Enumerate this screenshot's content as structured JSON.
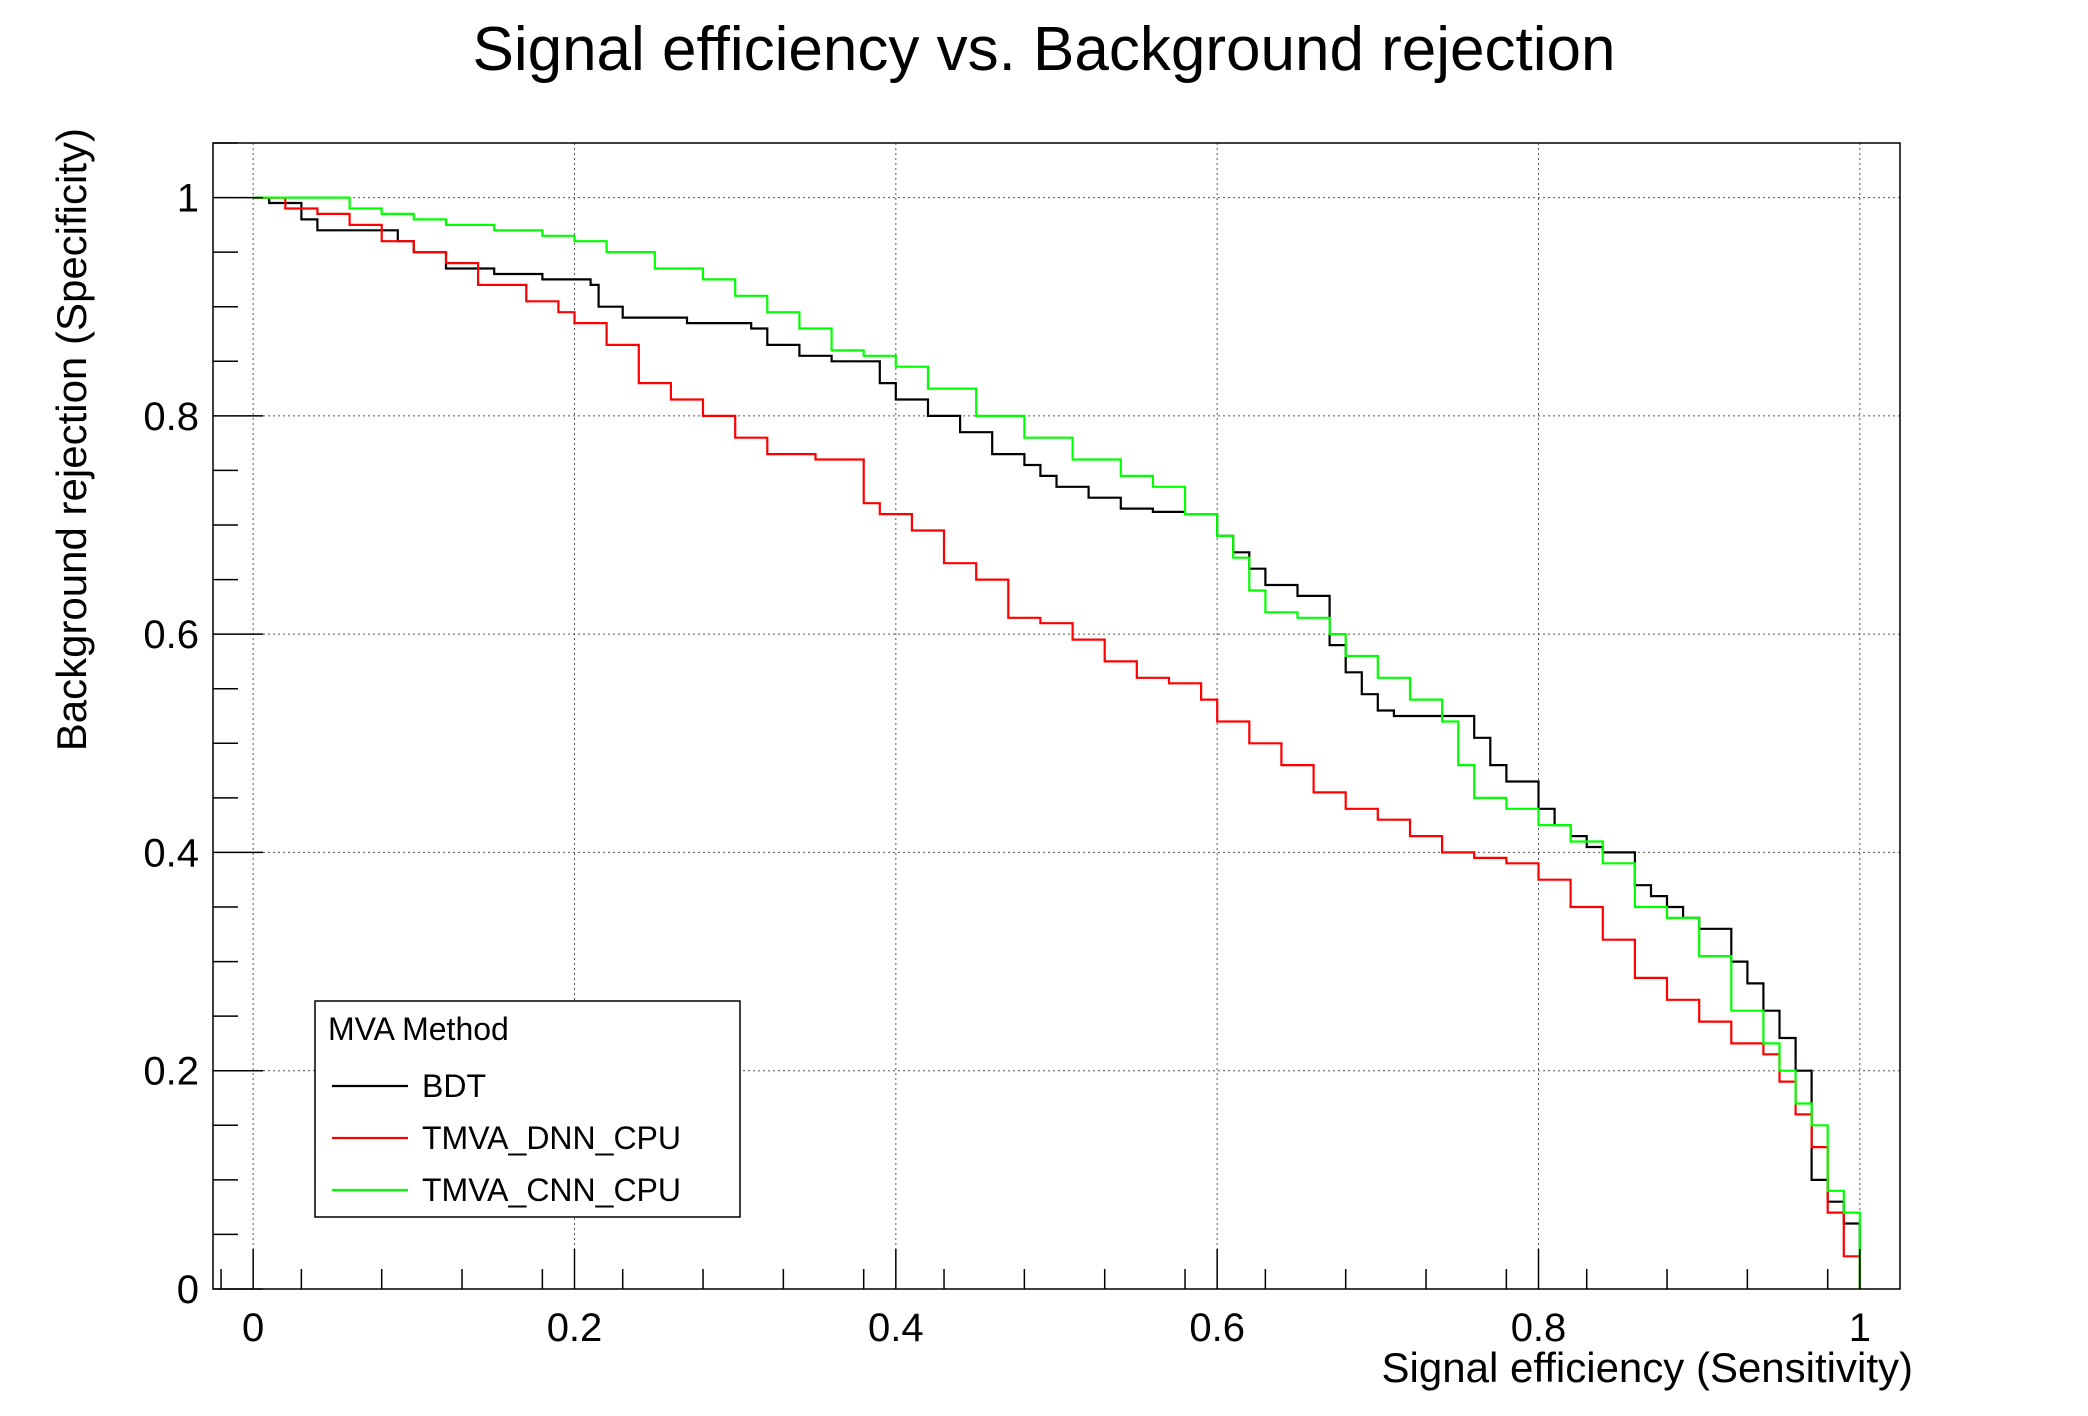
{
  "chart_data": {
    "type": "line",
    "title": "Signal efficiency vs. Background rejection",
    "xlabel": "Signal efficiency (Sensitivity)",
    "ylabel": "Background rejection (Specificity)",
    "xlim": [
      -0.025,
      1.025
    ],
    "ylim": [
      0,
      1.05
    ],
    "grid": true,
    "x_ticks": [
      {
        "value": 0,
        "label": "0"
      },
      {
        "value": 0.2,
        "label": "0.2"
      },
      {
        "value": 0.4,
        "label": "0.4"
      },
      {
        "value": 0.6,
        "label": "0.6"
      },
      {
        "value": 0.8,
        "label": "0.8"
      },
      {
        "value": 1,
        "label": "1"
      }
    ],
    "y_ticks": [
      {
        "value": 0,
        "label": "0"
      },
      {
        "value": 0.2,
        "label": "0.2"
      },
      {
        "value": 0.4,
        "label": "0.4"
      },
      {
        "value": 0.6,
        "label": "0.6"
      },
      {
        "value": 0.8,
        "label": "0.8"
      },
      {
        "value": 1,
        "label": "1"
      }
    ],
    "legend": {
      "title": "MVA Method",
      "placement": "bottom-left"
    },
    "series": [
      {
        "name": "BDT",
        "color": "#000000",
        "x": [
          0,
          0.01,
          0.03,
          0.04,
          0.05,
          0.07,
          0.09,
          0.1,
          0.12,
          0.15,
          0.18,
          0.21,
          0.215,
          0.23,
          0.27,
          0.31,
          0.32,
          0.34,
          0.36,
          0.38,
          0.39,
          0.4,
          0.42,
          0.44,
          0.46,
          0.48,
          0.49,
          0.5,
          0.52,
          0.54,
          0.56,
          0.58,
          0.6,
          0.61,
          0.62,
          0.63,
          0.65,
          0.67,
          0.68,
          0.69,
          0.7,
          0.71,
          0.72,
          0.76,
          0.77,
          0.78,
          0.8,
          0.81,
          0.82,
          0.83,
          0.84,
          0.86,
          0.87,
          0.88,
          0.89,
          0.9,
          0.92,
          0.93,
          0.94,
          0.95,
          0.96,
          0.97,
          0.98,
          0.99,
          1.0
        ],
        "y": [
          1.0,
          0.995,
          0.98,
          0.97,
          0.97,
          0.97,
          0.96,
          0.95,
          0.935,
          0.93,
          0.925,
          0.92,
          0.9,
          0.89,
          0.885,
          0.88,
          0.865,
          0.855,
          0.85,
          0.85,
          0.83,
          0.815,
          0.8,
          0.785,
          0.765,
          0.755,
          0.745,
          0.735,
          0.725,
          0.715,
          0.712,
          0.71,
          0.69,
          0.675,
          0.66,
          0.645,
          0.635,
          0.59,
          0.565,
          0.545,
          0.53,
          0.525,
          0.525,
          0.505,
          0.48,
          0.465,
          0.44,
          0.425,
          0.415,
          0.405,
          0.4,
          0.37,
          0.36,
          0.35,
          0.34,
          0.33,
          0.3,
          0.28,
          0.255,
          0.23,
          0.2,
          0.1,
          0.08,
          0.06,
          0.0
        ]
      },
      {
        "name": "TMVA_DNN_CPU",
        "color": "#ff0000",
        "x": [
          0,
          0.02,
          0.04,
          0.06,
          0.08,
          0.1,
          0.12,
          0.14,
          0.17,
          0.19,
          0.2,
          0.22,
          0.24,
          0.26,
          0.28,
          0.3,
          0.32,
          0.35,
          0.38,
          0.39,
          0.41,
          0.43,
          0.45,
          0.47,
          0.49,
          0.51,
          0.53,
          0.55,
          0.57,
          0.59,
          0.6,
          0.62,
          0.64,
          0.66,
          0.68,
          0.7,
          0.72,
          0.74,
          0.76,
          0.78,
          0.8,
          0.82,
          0.84,
          0.86,
          0.88,
          0.9,
          0.92,
          0.94,
          0.95,
          0.96,
          0.97,
          0.98,
          0.99,
          1.0
        ],
        "y": [
          1.0,
          0.99,
          0.985,
          0.975,
          0.96,
          0.95,
          0.94,
          0.92,
          0.905,
          0.895,
          0.885,
          0.865,
          0.83,
          0.815,
          0.8,
          0.78,
          0.765,
          0.76,
          0.72,
          0.71,
          0.695,
          0.665,
          0.65,
          0.615,
          0.61,
          0.595,
          0.575,
          0.56,
          0.555,
          0.54,
          0.52,
          0.5,
          0.48,
          0.455,
          0.44,
          0.43,
          0.415,
          0.4,
          0.395,
          0.39,
          0.375,
          0.35,
          0.32,
          0.285,
          0.265,
          0.245,
          0.225,
          0.215,
          0.19,
          0.16,
          0.13,
          0.07,
          0.03,
          0.0
        ]
      },
      {
        "name": "TMVA_CNN_CPU",
        "color": "#00ff00",
        "x": [
          0,
          0.03,
          0.06,
          0.08,
          0.1,
          0.12,
          0.15,
          0.18,
          0.2,
          0.22,
          0.25,
          0.28,
          0.3,
          0.32,
          0.34,
          0.36,
          0.38,
          0.4,
          0.42,
          0.45,
          0.48,
          0.51,
          0.54,
          0.56,
          0.58,
          0.6,
          0.61,
          0.62,
          0.63,
          0.65,
          0.67,
          0.68,
          0.7,
          0.72,
          0.74,
          0.75,
          0.76,
          0.78,
          0.8,
          0.82,
          0.84,
          0.86,
          0.88,
          0.9,
          0.92,
          0.94,
          0.95,
          0.96,
          0.97,
          0.98,
          0.99,
          1.0
        ],
        "y": [
          1.0,
          1.0,
          0.99,
          0.985,
          0.98,
          0.975,
          0.97,
          0.965,
          0.96,
          0.95,
          0.935,
          0.925,
          0.91,
          0.895,
          0.88,
          0.86,
          0.855,
          0.845,
          0.825,
          0.8,
          0.78,
          0.76,
          0.745,
          0.735,
          0.71,
          0.69,
          0.67,
          0.64,
          0.62,
          0.615,
          0.6,
          0.58,
          0.56,
          0.54,
          0.52,
          0.48,
          0.45,
          0.44,
          0.425,
          0.41,
          0.39,
          0.35,
          0.34,
          0.305,
          0.255,
          0.225,
          0.2,
          0.17,
          0.15,
          0.09,
          0.07,
          0.0
        ]
      }
    ]
  }
}
